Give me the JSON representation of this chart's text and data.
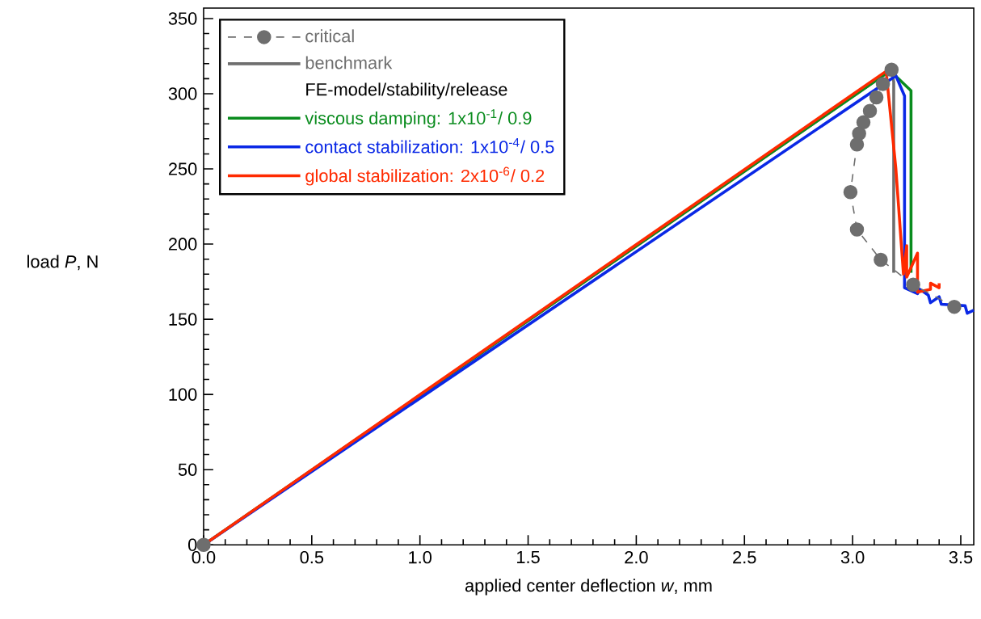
{
  "chart_data": {
    "type": "line",
    "xlabel": "applied center deflection *w*, mm",
    "ylabel": "load *P*, N",
    "legend_title": "FE-model/stability/release",
    "xlim": [
      0,
      3.56
    ],
    "ylim": [
      0,
      357
    ],
    "xticks": [
      {
        "value": 0,
        "label": "0.0"
      },
      0.5,
      {
        "value": 1,
        "label": "1.0"
      },
      1.5,
      {
        "value": 2,
        "label": "2.0"
      },
      2.5,
      {
        "value": 3,
        "label": "3.0"
      },
      3.5
    ],
    "yticks": [
      0,
      50,
      100,
      150,
      200,
      250,
      300,
      350
    ],
    "grid": false,
    "legend": "top left",
    "series": [
      {
        "name": "benchmark",
        "color": "#6e6e6e",
        "line_style": "solid",
        "x": [
          0,
          3.18,
          3.19,
          3.19
        ],
        "values": [
          0,
          316,
          308,
          181
        ]
      },
      {
        "name": "viscous damping: 1x10$^{-1}$/ 0.9",
        "color": "#0a8c1e",
        "line_style": "solid",
        "x": [
          0,
          3.18,
          3.19,
          3.27,
          3.27
        ],
        "values": [
          0,
          316,
          313,
          302,
          181
        ]
      },
      {
        "name": "contact stabilization: 1x10$^{-4}$/ 0.5",
        "color": "#0a28e6",
        "line_style": "solid",
        "x": [
          0,
          3.2,
          3.24,
          3.24,
          3.3,
          3.31,
          3.35,
          3.36,
          3.4,
          3.41,
          3.52,
          3.53,
          3.56
        ],
        "values": [
          0,
          312,
          298.5,
          171,
          167,
          170,
          166,
          161,
          165,
          160,
          159,
          154,
          156
        ]
      },
      {
        "name": "global stabilization: 2x10$^{-6}$/ 0.2",
        "color": "#ff2a00",
        "line_style": "solid",
        "x": [
          0,
          3.155,
          3.2,
          3.235,
          3.25,
          3.25,
          3.3,
          3.3,
          3.36,
          3.36,
          3.4,
          3.4
        ],
        "values": [
          0,
          315,
          250,
          180,
          199,
          178,
          194,
          168,
          170,
          174,
          171,
          174
        ]
      },
      {
        "name": "critical",
        "color": "#6e6e6e",
        "line_style": "dashed",
        "marker": "circle",
        "x": [
          0,
          1.5,
          3.18,
          3.14,
          3.11,
          3.08,
          3.05,
          3.03,
          3.02,
          2.99,
          3.02,
          3.13,
          3.28,
          3.47
        ],
        "values": [
          0,
          null,
          316,
          306.5,
          297.6,
          288.6,
          281,
          273.5,
          266.3,
          234.6,
          209.7,
          189.6,
          173,
          158.3
        ]
      }
    ]
  }
}
